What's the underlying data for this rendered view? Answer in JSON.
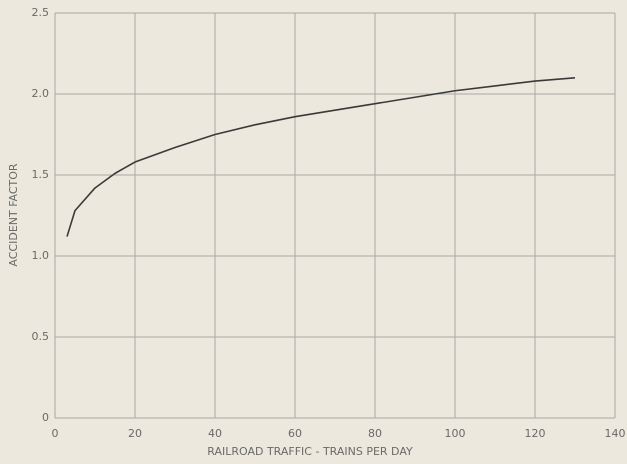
{
  "chart_data": {
    "type": "line",
    "xlabel": "RAILROAD TRAFFIC - TRAINS PER DAY",
    "ylabel": "ACCIDENT FACTOR",
    "x": [
      3,
      5,
      10,
      15,
      20,
      30,
      40,
      50,
      60,
      70,
      80,
      90,
      100,
      110,
      120,
      130
    ],
    "series": [
      {
        "color": "#3a3a38",
        "values": [
          1.12,
          1.28,
          1.42,
          1.51,
          1.58,
          1.67,
          1.75,
          1.81,
          1.86,
          1.9,
          1.94,
          1.98,
          2.02,
          2.05,
          2.08,
          2.1
        ]
      }
    ],
    "xlim": [
      0,
      140
    ],
    "xticks": [
      0,
      20,
      40,
      60,
      80,
      100,
      120,
      140
    ],
    "ylim": [
      0,
      2.5
    ],
    "yticks": [
      0,
      0.5,
      {
        "value": 1,
        "label": "1.0"
      },
      1.5,
      {
        "value": 2,
        "label": "2.0"
      },
      2.5
    ],
    "grid": true
  }
}
